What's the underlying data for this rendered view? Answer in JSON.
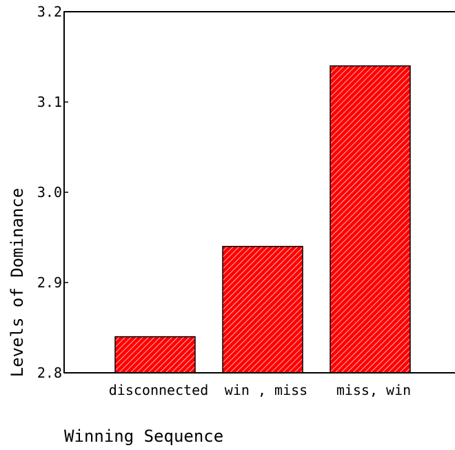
{
  "chart_data": {
    "type": "bar",
    "title": "",
    "xlabel": "Winning Sequence",
    "ylabel": "Levels of Dominance",
    "categories": [
      "disconnected",
      "win , miss",
      "miss, win"
    ],
    "values": [
      2.84,
      2.94,
      3.14
    ],
    "ylim": [
      2.8,
      3.2
    ],
    "yticks": [
      "2.8",
      "2.9",
      "3.0",
      "3.1",
      "3.2"
    ],
    "bar_color": "#ff0000",
    "hatch_color": "#ffffff",
    "grid": false,
    "legend": "none"
  }
}
